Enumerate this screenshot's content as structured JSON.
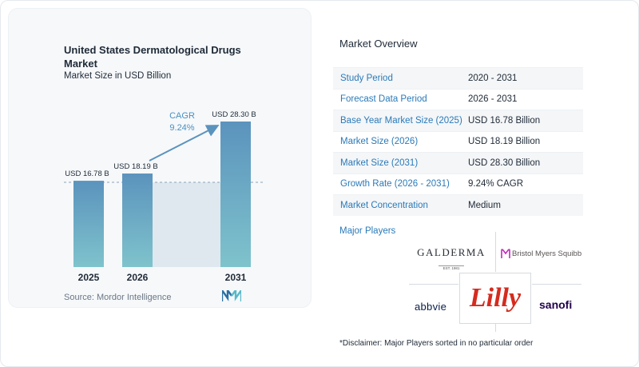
{
  "chart_data": {
    "type": "bar",
    "title": "United States Dermatological Drugs Market",
    "subtitle": "Market Size in USD Billion",
    "categories": [
      "2025",
      "2026",
      "2031"
    ],
    "values": [
      16.78,
      18.19,
      28.3
    ],
    "data_labels": [
      "USD 16.78 B",
      "USD 18.19 B",
      "USD 28.30 B"
    ],
    "cagr_label": "CAGR",
    "cagr_value": "9.24%",
    "ylim": [
      0,
      28.3
    ]
  },
  "source_text": "Source: Mordor Intelligence",
  "overview": {
    "title": "Market Overview",
    "rows": [
      {
        "key": "Study Period",
        "value": "2020 - 2031"
      },
      {
        "key": "Forecast Data Period",
        "value": "2026 - 2031"
      },
      {
        "key": "Base Year Market Size (2025)",
        "value": "USD 16.78 Billion"
      },
      {
        "key": "Market Size (2026)",
        "value": "USD 18.19 Billion"
      },
      {
        "key": "Market Size (2031)",
        "value": "USD 28.30 Billion"
      },
      {
        "key": "Growth Rate (2026 - 2031)",
        "value": "9.24% CAGR"
      },
      {
        "key": "Market Concentration",
        "value": "Medium"
      }
    ]
  },
  "players": {
    "title": "Major Players",
    "galderma": "GALDERMA",
    "galderma_sub": "EST. 1981",
    "bms": "Bristol Myers Squibb",
    "abbvie": "abbvie",
    "lilly": "Lilly",
    "sanofi": "sanofi"
  },
  "disclaimer": "*Disclaimer: Major Players sorted in no particular order",
  "colors": {
    "bar_top": "#5b93bd",
    "bar_bottom": "#7fc3cc",
    "accent": "#2b7ab8",
    "lilly_red": "#d52b1e",
    "bms_purple": "#be2bbb"
  }
}
